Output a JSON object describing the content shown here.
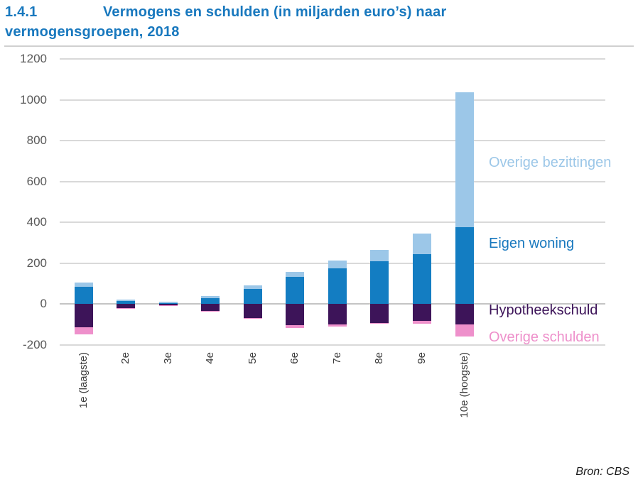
{
  "title": {
    "number": "1.4.1",
    "line1": "Vermogens en schulden (in miljarden euro’s) naar",
    "line2": "vermogensgroepen, 2018",
    "color": "#1878BE"
  },
  "source": "Bron: CBS",
  "chart_data": {
    "type": "bar",
    "stacked": true,
    "title": "Vermogens en schulden (in miljarden euro’s) naar vermogensgroepen, 2018",
    "xlabel": "",
    "ylabel": "",
    "units": "miljarden euro’s",
    "categories": [
      "1e (laagste)",
      "2e",
      "3e",
      "4e",
      "5e",
      "6e",
      "7e",
      "8e",
      "9e",
      "10e (hoogste)"
    ],
    "series": [
      {
        "name": "Overige bezittingen",
        "color": "#9CC7E8",
        "values": [
          18,
          7,
          4,
          9,
          17,
          25,
          39,
          56,
          104,
          660
        ]
      },
      {
        "name": "Eigen woning",
        "color": "#137DC2",
        "values": [
          85,
          14,
          5,
          29,
          73,
          131,
          173,
          207,
          242,
          375
        ]
      },
      {
        "name": "Hypotheekschuld",
        "color": "#3D1459",
        "values": [
          -115,
          -22,
          -8,
          -36,
          -68,
          -104,
          -101,
          -93,
          -83,
          -101
        ]
      },
      {
        "name": "Overige schulden",
        "color": "#EE90CB",
        "values": [
          -35,
          -4,
          -2,
          -4,
          -5,
          -16,
          -11,
          -5,
          -14,
          -59
        ]
      }
    ],
    "ylim": [
      -200,
      1200
    ],
    "yticks": [
      -200,
      0,
      200,
      400,
      600,
      800,
      1000,
      1200
    ],
    "grid": true,
    "legend_position": "right-inside",
    "axis_label_color": "#595959",
    "grid_color": "#D9D9D9"
  }
}
